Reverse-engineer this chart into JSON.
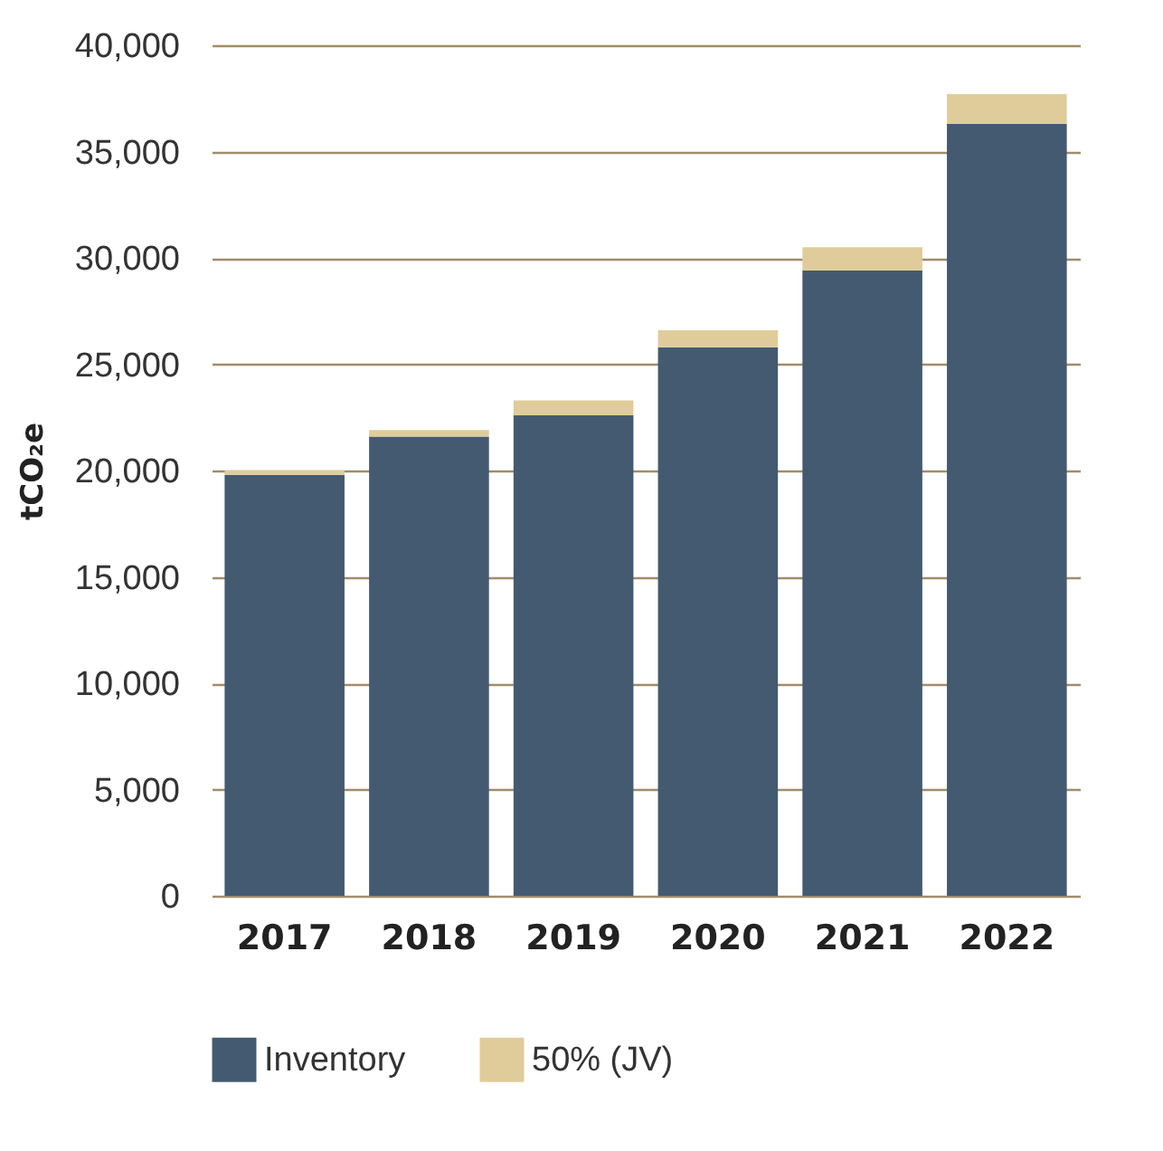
{
  "chart_data": {
    "type": "bar",
    "stacked": true,
    "ylabel": "tCO₂e",
    "categories": [
      "2017",
      "2018",
      "2019",
      "2020",
      "2021",
      "2022"
    ],
    "series": [
      {
        "name": "Inventory",
        "color": "#445a70",
        "values": [
          19800,
          21600,
          22600,
          25800,
          29400,
          36300
        ]
      },
      {
        "name": "50% (JV)",
        "color": "#e0cc9a",
        "values": [
          200,
          300,
          700,
          800,
          1100,
          1400
        ]
      }
    ],
    "ylim": [
      0,
      40000
    ],
    "yticks": [
      0,
      {
        "value": 5000,
        "label": "5,000"
      },
      {
        "value": 10000,
        "label": "10,000"
      },
      {
        "value": 15000,
        "label": "15,000"
      },
      {
        "value": 20000,
        "label": "20,000"
      },
      {
        "value": 25000,
        "label": "25,000"
      },
      {
        "value": 30000,
        "label": "30,000"
      },
      {
        "value": 35000,
        "label": "35,000"
      },
      {
        "value": 40000,
        "label": "40,000"
      }
    ],
    "grid": "y",
    "legend": "bottom"
  }
}
